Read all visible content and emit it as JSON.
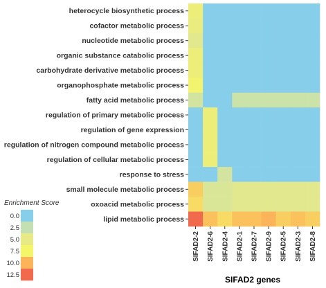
{
  "chart_data": {
    "type": "heatmap",
    "xlabel": "SIFAD2 genes",
    "legend": {
      "title": "Enrichment Score",
      "ticks": [
        "0.0",
        "2.5",
        "5.0",
        "7.5",
        "10.0",
        "12.5"
      ],
      "colors": [
        "#87ceeb",
        "#c4e0b2",
        "#e8ea85",
        "#f5f56a",
        "#fbb45a",
        "#f26a4e"
      ]
    },
    "columns": [
      "SIFAD2-2",
      "SIFAD2-6",
      "SIFAD2-4",
      "SIFAD2-1",
      "SIFAD2-7",
      "SIFAD2-9",
      "SIFAD2-5",
      "SIFAD2-3",
      "SIFAD2-8"
    ],
    "rows": [
      "heterocycle biosynthetic process",
      "cofactor metabolic process",
      "nucleotide metabolic process",
      "organic substance catabolic process",
      "carbohydrate derivative metabolic process",
      "organophosphate metabolic process",
      "fatty acid metabolic process",
      "regulation of primary metabolic process",
      "regulation of gene expression",
      "regulation of nitrogen compound metabolic process",
      "regulation of cellular metabolic process",
      "response to stress",
      "small molecule metabolic process",
      "oxoacid metabolic process",
      "lipid metabolic process"
    ],
    "values": [
      [
        6.0,
        0,
        0,
        0,
        0,
        0,
        0,
        0,
        0
      ],
      [
        5.5,
        0,
        0,
        0,
        0,
        0,
        0,
        0,
        0
      ],
      [
        4.5,
        0,
        0,
        0,
        0,
        0,
        0,
        0,
        0
      ],
      [
        6.0,
        0,
        0,
        0,
        0,
        0,
        0,
        0,
        0
      ],
      [
        6.0,
        0,
        0,
        0,
        0,
        0,
        0,
        0,
        0
      ],
      [
        7.0,
        0,
        0,
        0,
        0,
        0,
        0,
        0,
        0
      ],
      [
        3.5,
        0,
        0,
        3.0,
        3.0,
        3.0,
        3.0,
        3.0,
        3.0
      ],
      [
        0,
        6.0,
        0,
        0,
        0,
        0,
        0,
        0,
        0
      ],
      [
        0,
        6.0,
        0,
        0,
        0,
        0,
        0,
        0,
        0
      ],
      [
        0,
        6.0,
        0,
        0,
        0,
        0,
        0,
        0,
        0
      ],
      [
        0,
        6.0,
        0,
        0,
        0,
        0,
        0,
        0,
        0
      ],
      [
        0,
        0,
        3.5,
        0,
        0,
        0,
        0,
        0,
        0
      ],
      [
        9.0,
        4.0,
        4.0,
        4.5,
        4.5,
        4.5,
        4.5,
        4.5,
        4.5
      ],
      [
        8.5,
        4.0,
        4.0,
        4.5,
        4.5,
        4.5,
        4.5,
        4.5,
        4.5
      ],
      [
        12.5,
        9.5,
        8.5,
        9.5,
        9.5,
        10.0,
        9.0,
        9.5,
        9.0
      ]
    ],
    "scale_max": 12.5
  }
}
